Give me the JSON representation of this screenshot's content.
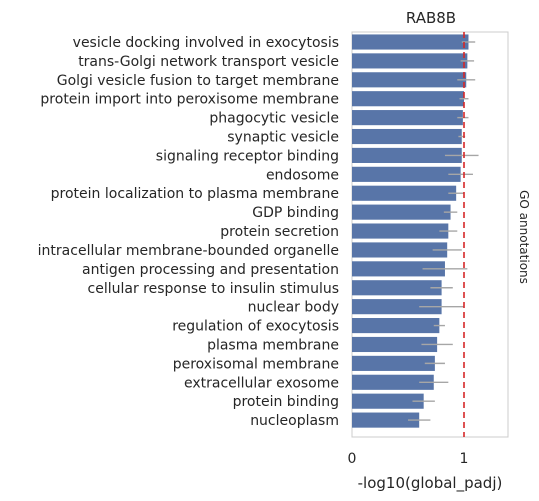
{
  "chart_data": {
    "type": "bar",
    "orientation": "horizontal",
    "title": "RAB8B",
    "xlabel": "-log10(global_padj)",
    "ylabel": "GO annotations",
    "xlim": [
      0,
      1.4
    ],
    "xticks": [
      0,
      1
    ],
    "grid": false,
    "threshold_line": {
      "value": 1.0,
      "style": "dashed",
      "color": "#d62728"
    },
    "bar_color": "#5875a8",
    "error_color": "#a6a6a6",
    "categories": [
      "vesicle docking involved in exocytosis",
      "trans-Golgi network transport vesicle",
      "Golgi vesicle fusion to target membrane",
      "protein import into peroxisome membrane",
      "phagocytic vesicle",
      "synaptic vesicle",
      "signaling receptor binding",
      "endosome",
      "protein localization to plasma membrane",
      "GDP binding",
      "protein secretion",
      "intracellular membrane-bounded organelle",
      "antigen processing and presentation",
      "cellular response to insulin stimulus",
      "nuclear body",
      "regulation of exocytosis",
      "plasma membrane",
      "peroxisomal membrane",
      "extracellular exosome",
      "protein binding",
      "nucleoplasm"
    ],
    "values": [
      1.04,
      1.03,
      1.02,
      1.0,
      0.99,
      0.98,
      0.98,
      0.97,
      0.93,
      0.88,
      0.86,
      0.85,
      0.83,
      0.8,
      0.8,
      0.78,
      0.76,
      0.74,
      0.73,
      0.64,
      0.6
    ],
    "errors": [
      0.06,
      0.06,
      0.08,
      0.04,
      0.05,
      0.03,
      0.15,
      0.11,
      0.07,
      0.06,
      0.08,
      0.13,
      0.2,
      0.1,
      0.2,
      0.05,
      0.14,
      0.09,
      0.13,
      0.1,
      0.1
    ]
  }
}
